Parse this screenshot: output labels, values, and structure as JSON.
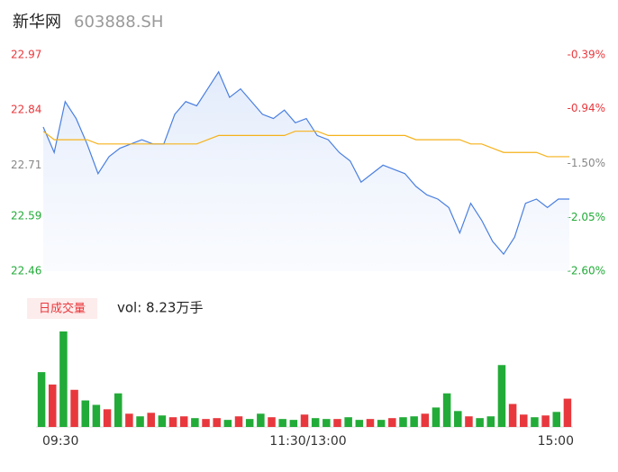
{
  "chart_data": [
    {
      "type": "line",
      "title": "新华网",
      "subtitle": "603888.SH",
      "ylim": [
        22.46,
        22.97
      ],
      "yticks": [
        22.97,
        22.84,
        22.71,
        22.59,
        22.46
      ],
      "ytick_colors": [
        "#e8383d",
        "#e8383d",
        "#888888",
        "#22ab38",
        "#22ab38"
      ],
      "y2lim": [
        -2.6,
        -0.39
      ],
      "y2ticks": [
        {
          "value": -0.39,
          "label": "-0.39%"
        },
        {
          "value": -0.94,
          "label": "-0.94%"
        },
        {
          "value": -1.5,
          "label": "-1.50%"
        },
        {
          "value": -2.05,
          "label": "-2.05%"
        },
        {
          "value": -2.6,
          "label": "-2.60%"
        }
      ],
      "series": [
        {
          "color": "#4a7fe0",
          "values": [
            22.8,
            22.74,
            22.86,
            22.82,
            22.76,
            22.69,
            22.73,
            22.75,
            22.76,
            22.77,
            22.76,
            22.76,
            22.83,
            22.86,
            22.85,
            22.89,
            22.93,
            22.87,
            22.89,
            22.86,
            22.83,
            22.82,
            22.84,
            22.81,
            22.82,
            22.78,
            22.77,
            22.74,
            22.72,
            22.67,
            22.69,
            22.71,
            22.7,
            22.69,
            22.66,
            22.64,
            22.63,
            22.61,
            22.55,
            22.62,
            22.58,
            22.53,
            22.5,
            22.54,
            22.62,
            22.63,
            22.61,
            22.63,
            22.63
          ]
        },
        {
          "color": "#f5b21b",
          "values": [
            22.79,
            22.77,
            22.77,
            22.77,
            22.77,
            22.76,
            22.76,
            22.76,
            22.76,
            22.76,
            22.76,
            22.76,
            22.76,
            22.76,
            22.76,
            22.77,
            22.78,
            22.78,
            22.78,
            22.78,
            22.78,
            22.78,
            22.78,
            22.79,
            22.79,
            22.79,
            22.78,
            22.78,
            22.78,
            22.78,
            22.78,
            22.78,
            22.78,
            22.78,
            22.77,
            22.77,
            22.77,
            22.77,
            22.77,
            22.76,
            22.76,
            22.75,
            22.74,
            22.74,
            22.74,
            22.74,
            22.73,
            22.73,
            22.73
          ]
        }
      ]
    },
    {
      "type": "bar",
      "title": "日成交量",
      "annotation": "vol: 8.23万手",
      "categories": [
        "09:30",
        null,
        null,
        null,
        null,
        null,
        null,
        null,
        null,
        null,
        null,
        null,
        null,
        null,
        null,
        null,
        null,
        null,
        null,
        null,
        null,
        null,
        null,
        null,
        "11:30/13:00",
        null,
        null,
        null,
        null,
        null,
        null,
        null,
        null,
        null,
        null,
        null,
        null,
        null,
        null,
        null,
        null,
        null,
        null,
        null,
        null,
        null,
        null,
        null,
        "15:00"
      ],
      "ylim": [
        0,
        1100
      ],
      "series": [
        {
          "values": [
            620,
            480,
            1080,
            420,
            300,
            250,
            200,
            380,
            150,
            120,
            160,
            130,
            110,
            120,
            100,
            90,
            100,
            80,
            120,
            90,
            150,
            110,
            90,
            80,
            140,
            100,
            90,
            90,
            110,
            80,
            90,
            80,
            100,
            110,
            120,
            150,
            220,
            380,
            180,
            120,
            100,
            120,
            700,
            260,
            140,
            110,
            130,
            170,
            320
          ],
          "colors": [
            "#22ab38",
            "#e8383d",
            "#22ab38",
            "#e8383d",
            "#22ab38",
            "#22ab38",
            "#e8383d",
            "#22ab38",
            "#e8383d",
            "#22ab38",
            "#e8383d",
            "#22ab38",
            "#e8383d",
            "#e8383d",
            "#22ab38",
            "#e8383d",
            "#e8383d",
            "#22ab38",
            "#e8383d",
            "#22ab38",
            "#22ab38",
            "#e8383d",
            "#22ab38",
            "#22ab38",
            "#e8383d",
            "#22ab38",
            "#22ab38",
            "#e8383d",
            "#22ab38",
            "#22ab38",
            "#e8383d",
            "#22ab38",
            "#e8383d",
            "#22ab38",
            "#22ab38",
            "#e8383d",
            "#22ab38",
            "#22ab38",
            "#22ab38",
            "#e8383d",
            "#22ab38",
            "#22ab38",
            "#22ab38",
            "#e8383d",
            "#e8383d",
            "#22ab38",
            "#e8383d",
            "#22ab38",
            "#e8383d"
          ]
        }
      ]
    }
  ]
}
